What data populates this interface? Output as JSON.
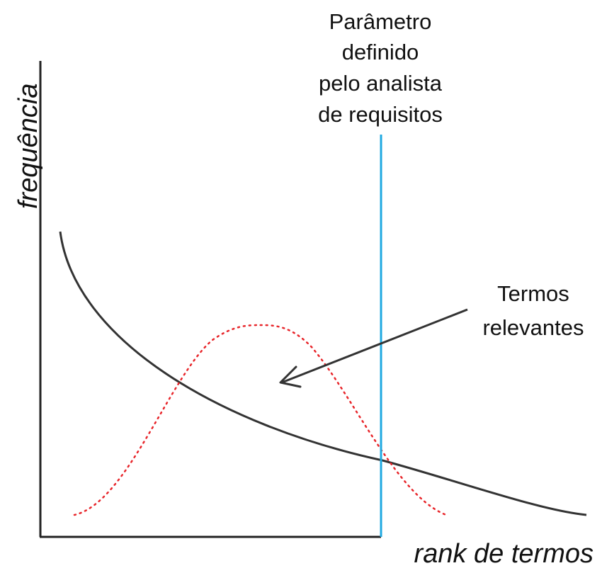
{
  "axes": {
    "y_label": "frequência",
    "x_label": "rank de termos"
  },
  "annotations": {
    "parameter_lines": [
      "Parâmetro",
      "definido",
      "pelo analista",
      "de requisitos"
    ],
    "relevant_lines": [
      "Termos",
      "relevantes"
    ]
  },
  "colors": {
    "axis": "#222222",
    "frequency_curve": "#333333",
    "relevant_curve": "#e8262b",
    "parameter_line": "#1fa9e1",
    "arrow": "#333333"
  }
}
